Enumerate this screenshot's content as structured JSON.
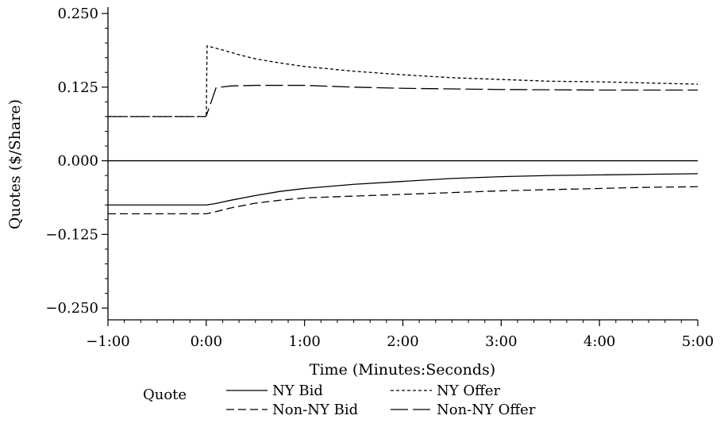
{
  "chart_data": {
    "type": "line",
    "title": "",
    "xlabel": "Time (Minutes:Seconds)",
    "ylabel": "Quotes ($/Share)",
    "xlim": [
      -60,
      300
    ],
    "ylim": [
      -0.27,
      0.25
    ],
    "x_ticks": [
      {
        "value": -60,
        "label": "−1:00"
      },
      {
        "value": 0,
        "label": "0:00"
      },
      {
        "value": 60,
        "label": "1:00"
      },
      {
        "value": 120,
        "label": "2:00"
      },
      {
        "value": 180,
        "label": "3:00"
      },
      {
        "value": 240,
        "label": "4:00"
      },
      {
        "value": 300,
        "label": "5:00"
      }
    ],
    "y_ticks": [
      {
        "value": 0.25,
        "label": "0.250"
      },
      {
        "value": 0.125,
        "label": "0.125"
      },
      {
        "value": 0.0,
        "label": "0.000"
      },
      {
        "value": -0.125,
        "label": "−0.125"
      },
      {
        "value": -0.25,
        "label": "−0.250"
      }
    ],
    "zero_line": true,
    "grid": false,
    "legend": {
      "title": "Quote",
      "position": "bottom"
    },
    "series": [
      {
        "name": "NY Bid",
        "dash": "solid",
        "x": [
          -60,
          -10,
          0,
          5,
          15,
          30,
          45,
          60,
          90,
          120,
          150,
          180,
          210,
          240,
          270,
          300
        ],
        "y": [
          -0.075,
          -0.075,
          -0.075,
          -0.073,
          -0.067,
          -0.059,
          -0.052,
          -0.047,
          -0.04,
          -0.035,
          -0.03,
          -0.027,
          -0.025,
          -0.024,
          -0.023,
          -0.022
        ]
      },
      {
        "name": "NY Offer",
        "dash": "short",
        "x": [
          -60,
          -1,
          0,
          0.5,
          10,
          20,
          30,
          45,
          60,
          90,
          120,
          150,
          180,
          210,
          240,
          270,
          300
        ],
        "y": [
          0.075,
          0.075,
          0.075,
          0.195,
          0.188,
          0.18,
          0.173,
          0.166,
          0.16,
          0.152,
          0.146,
          0.141,
          0.138,
          0.135,
          0.134,
          0.132,
          0.13
        ]
      },
      {
        "name": "Non-NY Bid",
        "dash": "medium",
        "x": [
          -60,
          -10,
          0,
          5,
          15,
          30,
          45,
          60,
          90,
          120,
          150,
          180,
          210,
          240,
          270,
          300
        ],
        "y": [
          -0.09,
          -0.09,
          -0.09,
          -0.087,
          -0.08,
          -0.072,
          -0.067,
          -0.063,
          -0.06,
          -0.057,
          -0.054,
          -0.051,
          -0.049,
          -0.047,
          -0.045,
          -0.044
        ]
      },
      {
        "name": "Non-NY Offer",
        "dash": "long",
        "x": [
          -60,
          -1,
          0,
          3,
          6,
          15,
          30,
          60,
          90,
          120,
          180,
          240,
          300
        ],
        "y": [
          0.075,
          0.075,
          0.076,
          0.1,
          0.124,
          0.127,
          0.128,
          0.128,
          0.125,
          0.123,
          0.121,
          0.12,
          0.12
        ]
      }
    ]
  }
}
